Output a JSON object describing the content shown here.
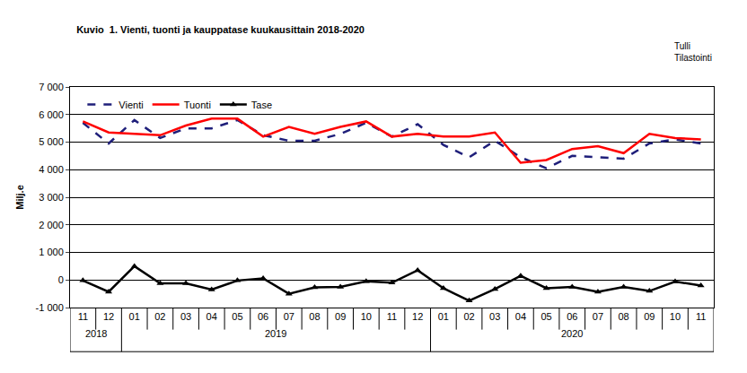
{
  "chart_data": {
    "type": "line",
    "title": "Kuvio  1. Vienti, tuonti ja kauppatase kuukausittain 2018-2020",
    "source": [
      "Tulli",
      "Tilastointi"
    ],
    "y_label": "Milj.e",
    "categories": [
      "11",
      "12",
      "01",
      "02",
      "03",
      "04",
      "05",
      "06",
      "07",
      "08",
      "09",
      "10",
      "11",
      "12",
      "01",
      "02",
      "03",
      "04",
      "05",
      "06",
      "07",
      "08",
      "09",
      "10",
      "11"
    ],
    "years": [
      "2018",
      "2018",
      "2019",
      "2019",
      "2019",
      "2019",
      "2019",
      "2019",
      "2019",
      "2019",
      "2019",
      "2019",
      "2019",
      "2019",
      "2020",
      "2020",
      "2020",
      "2020",
      "2020",
      "2020",
      "2020",
      "2020",
      "2020",
      "2020",
      "2020"
    ],
    "series": [
      {
        "name": "Vienti",
        "color": "#1f1f7a",
        "line_style": "dashed",
        "values": [
          5700,
          4950,
          5800,
          5150,
          5500,
          5500,
          5800,
          5250,
          5050,
          5050,
          5300,
          5700,
          5200,
          5650,
          4900,
          4450,
          5050,
          4450,
          4050,
          4500,
          4450,
          4400,
          4950,
          5100,
          4950
        ]
      },
      {
        "name": "Tuonti",
        "color": "#ff0000",
        "line_style": "solid",
        "values": [
          5750,
          5350,
          5300,
          5250,
          5600,
          5850,
          5850,
          5200,
          5550,
          5300,
          5550,
          5750,
          5200,
          5300,
          5200,
          5200,
          5350,
          4250,
          4350,
          4750,
          4850,
          4600,
          5300,
          5150,
          5100
        ]
      },
      {
        "name": "Tase",
        "color": "#000000",
        "line_style": "solid",
        "marker": "triangle",
        "values": [
          -20,
          -430,
          500,
          -120,
          -120,
          -350,
          -20,
          60,
          -500,
          -270,
          -250,
          -50,
          -100,
          350,
          -300,
          -750,
          -330,
          150,
          -300,
          -250,
          -430,
          -250,
          -400,
          -60,
          -200
        ]
      }
    ],
    "ylim": [
      -1000,
      7000
    ],
    "yticks": [
      {
        "value": -1000,
        "label": "-1 000"
      },
      0,
      {
        "value": 1000,
        "label": "1 000"
      },
      {
        "value": 2000,
        "label": "2 000"
      },
      {
        "value": 3000,
        "label": "3 000"
      },
      {
        "value": 4000,
        "label": "4 000"
      },
      {
        "value": 5000,
        "label": "5 000"
      },
      {
        "value": 6000,
        "label": "6 000"
      },
      {
        "value": 7000,
        "label": "7 000"
      }
    ],
    "grid": true,
    "legend": "upper left"
  }
}
